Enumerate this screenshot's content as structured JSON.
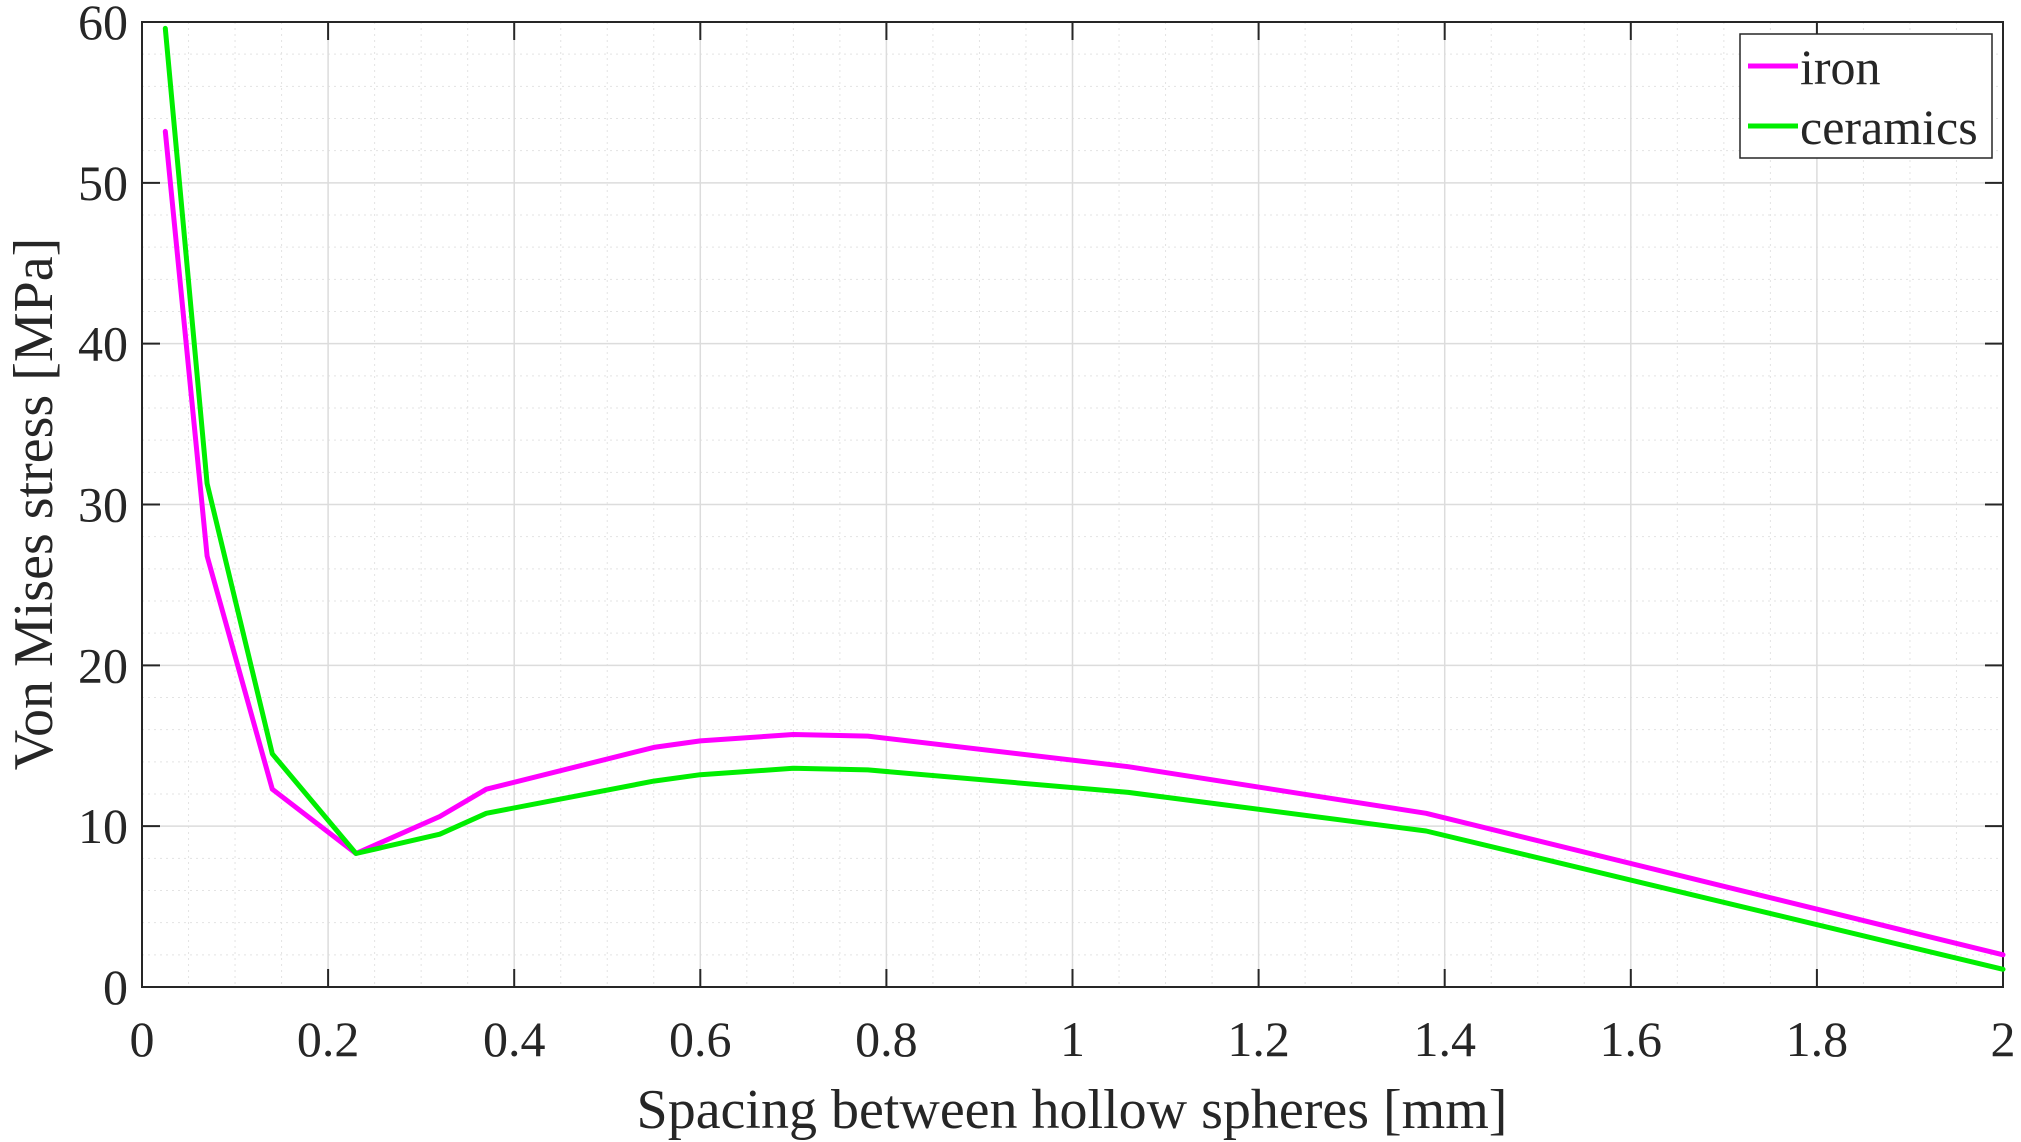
{
  "chart_data": {
    "type": "line",
    "xlabel": "Spacing between hollow spheres [mm]",
    "ylabel": "Von Mises stress [MPa]",
    "xlim": [
      0,
      2
    ],
    "ylim": [
      0,
      60
    ],
    "xticks": [
      0,
      0.2,
      0.4,
      0.6,
      0.8,
      1,
      1.2,
      1.4,
      1.6,
      1.8,
      2
    ],
    "yticks": [
      0,
      10,
      20,
      30,
      40,
      50,
      60
    ],
    "xtick_labels": [
      "0",
      "0.2",
      "0.4",
      "0.6",
      "0.8",
      "1",
      "1.2",
      "1.4",
      "1.6",
      "1.8",
      "2"
    ],
    "ytick_labels": [
      "0",
      "10",
      "20",
      "30",
      "40",
      "50",
      "60"
    ],
    "grid": true,
    "minor_grid": true,
    "legend_position": "top-right",
    "series": [
      {
        "name": "iron",
        "color": "#ff00ff",
        "x": [
          0.025,
          0.07,
          0.14,
          0.23,
          0.32,
          0.37,
          0.55,
          0.6,
          0.7,
          0.78,
          1.06,
          1.38,
          2.0
        ],
        "y": [
          53.2,
          26.8,
          12.3,
          8.3,
          10.6,
          12.3,
          14.9,
          15.3,
          15.7,
          15.6,
          13.7,
          10.8,
          2.0
        ]
      },
      {
        "name": "ceramics",
        "color": "#00ee00",
        "x": [
          0.025,
          0.07,
          0.14,
          0.23,
          0.32,
          0.37,
          0.55,
          0.6,
          0.7,
          0.78,
          1.06,
          1.38,
          2.0
        ],
        "y": [
          59.6,
          31.3,
          14.5,
          8.3,
          9.5,
          10.8,
          12.8,
          13.2,
          13.6,
          13.5,
          12.1,
          9.7,
          1.1
        ]
      }
    ]
  }
}
